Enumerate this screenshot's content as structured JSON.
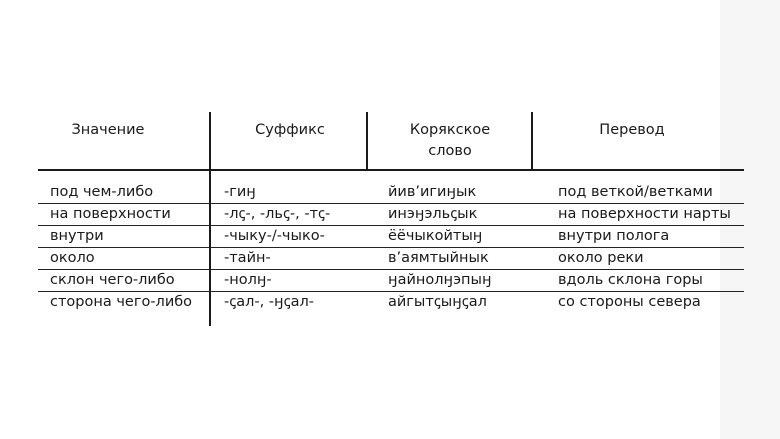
{
  "table": {
    "headers": {
      "meaning": "Значение",
      "suffix": "Суффикс",
      "koryak_line1": "Корякское",
      "koryak_line2": "слово",
      "translation": "Перевод"
    },
    "rows": [
      {
        "meaning": "под чем-либо",
        "suffix": "-гиӈ",
        "koryak": "йив’игиӈык",
        "translation": "под веткой/ветками"
      },
      {
        "meaning": "на поверхности",
        "suffix": "-лꞔ-, -льꞔ-, -тꞔ-",
        "koryak": "инэӈэльꞔык",
        "translation": "на поверхности нарты"
      },
      {
        "meaning": "внутри",
        "suffix": "-чыку-/-чыко-",
        "koryak": "ёёчыкойтыӈ",
        "translation": "внутри полога"
      },
      {
        "meaning": "около",
        "suffix": "-тайн-",
        "koryak": "в’аямтыйнык",
        "translation": "около реки"
      },
      {
        "meaning": "склон чего-либо",
        "suffix": "-нолӈ-",
        "koryak": "ӈайнолӈэпыӈ",
        "translation": "вдоль склона горы"
      },
      {
        "meaning": "сторона чего-либо",
        "suffix": "-ꞔал-, -ӈꞔал-",
        "koryak": "айгытꞔыӈꞔал",
        "translation": "со стороны севера"
      }
    ]
  }
}
